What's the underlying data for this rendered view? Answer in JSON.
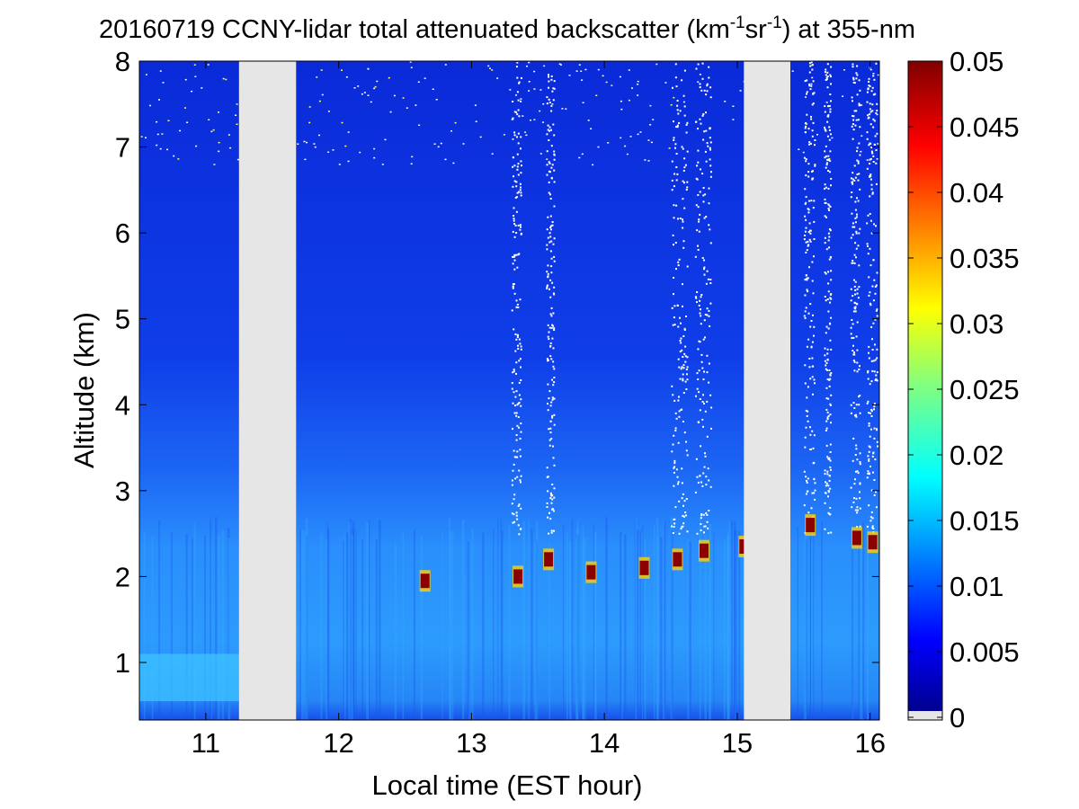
{
  "chart_data": {
    "type": "heatmap",
    "title": {
      "main": "20160719 CCNY-lidar total attenuated backscatter (km",
      "sup1": "-1",
      "mid": "sr",
      "sup2": "-1",
      "end": ") at 355-nm"
    },
    "xlabel": "Local time (EST hour)",
    "ylabel": "Altitude (km)",
    "xlim": [
      10.5,
      16.07
    ],
    "ylim": [
      0.33,
      8
    ],
    "xticks": [
      11,
      12,
      13,
      14,
      15,
      16
    ],
    "yticks": [
      1,
      2,
      3,
      4,
      5,
      6,
      7,
      8
    ],
    "colorbar": {
      "clim": [
        0,
        0.05
      ],
      "ticks": [
        "0",
        "0.005",
        "0.01",
        "0.015",
        "0.02",
        "0.025",
        "0.03",
        "0.035",
        "0.04",
        "0.045",
        "0.05"
      ],
      "colormap": "jet",
      "missing_color": "#e6e6e6"
    },
    "missing_data_periods": [
      [
        11.25,
        11.68
      ],
      [
        15.05,
        15.4
      ]
    ],
    "cloud_layers": [
      {
        "time": 12.65,
        "altitude_km": 1.95
      },
      {
        "time": 13.35,
        "altitude_km": 2.0
      },
      {
        "time": 13.58,
        "altitude_km": 2.2
      },
      {
        "time": 13.9,
        "altitude_km": 2.05
      },
      {
        "time": 14.3,
        "altitude_km": 2.1
      },
      {
        "time": 14.55,
        "altitude_km": 2.2
      },
      {
        "time": 14.75,
        "altitude_km": 2.3
      },
      {
        "time": 15.05,
        "altitude_km": 2.35
      },
      {
        "time": 15.55,
        "altitude_km": 2.6
      },
      {
        "time": 15.9,
        "altitude_km": 2.45
      },
      {
        "time": 16.02,
        "altitude_km": 2.4
      }
    ]
  }
}
